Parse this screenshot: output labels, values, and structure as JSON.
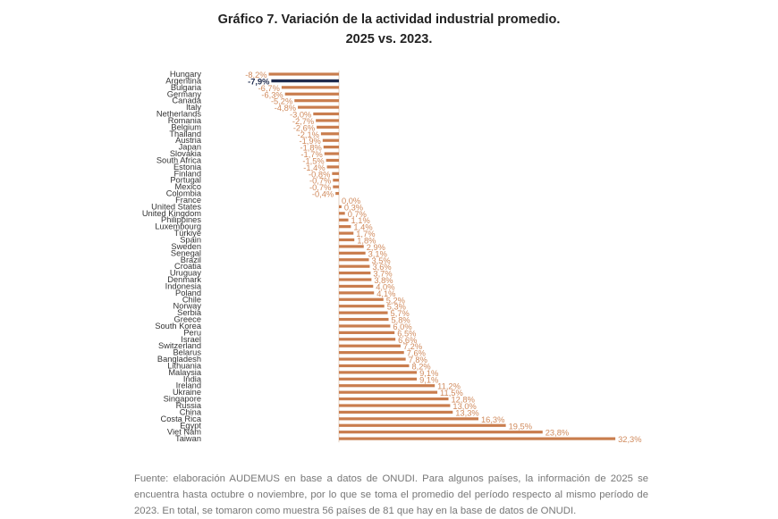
{
  "chart_data": {
    "type": "bar",
    "orientation": "horizontal",
    "title": "Gráfico 7. Variación de la actividad industrial promedio.",
    "subtitle": "2025 vs. 2023.",
    "categories": [
      "Hungary",
      "Argentina",
      "Bulgaria",
      "Germany",
      "Canada",
      "Italy",
      "Netherlands",
      "Romania",
      "Belgium",
      "Thailand",
      "Austria",
      "Japan",
      "Slovakia",
      "South Africa",
      "Estonia",
      "Finland",
      "Portugal",
      "Mexico",
      "Colombia",
      "France",
      "United States",
      "United Kingdom",
      "Philippines",
      "Luxembourg",
      "Türkiye",
      "Spain",
      "Sweden",
      "Senegal",
      "Brazil",
      "Croatia",
      "Uruguay",
      "Denmark",
      "Indonesia",
      "Poland",
      "Chile",
      "Norway",
      "Serbia",
      "Greece",
      "South Korea",
      "Peru",
      "Israel",
      "Switzerland",
      "Belarus",
      "Bangladesh",
      "Lithuania",
      "Malaysia",
      "India",
      "Ireland",
      "Ukraine",
      "Singapore",
      "Russia",
      "China",
      "Costa Rica",
      "Egypt",
      "Viet Nam",
      "Taiwan"
    ],
    "values": [
      -8.2,
      -7.9,
      -6.7,
      -6.3,
      -5.2,
      -4.8,
      -3.0,
      -2.7,
      -2.6,
      -2.1,
      -1.9,
      -1.8,
      -1.7,
      -1.5,
      -1.4,
      -0.8,
      -0.7,
      -0.7,
      -0.4,
      0.0,
      0.3,
      0.7,
      1.1,
      1.4,
      1.7,
      1.8,
      2.9,
      3.1,
      3.5,
      3.6,
      3.7,
      3.8,
      4.0,
      4.1,
      5.2,
      5.3,
      5.7,
      5.8,
      6.0,
      6.5,
      6.6,
      7.2,
      7.6,
      7.8,
      8.2,
      9.1,
      9.1,
      11.2,
      11.5,
      12.8,
      13.0,
      13.3,
      16.3,
      19.5,
      23.8,
      32.3
    ],
    "data_labels": [
      "-8,2%",
      "-7,9%",
      "-6,7%",
      "-6,3%",
      "-5,2%",
      "-4,8%",
      "-3,0%",
      "-2,7%",
      "-2,6%",
      "-2,1%",
      "-1,9%",
      "-1,8%",
      "-1,7%",
      "-1,5%",
      "-1,4%",
      "-0,8%",
      "-0,7%",
      "-0,7%",
      "-0,4%",
      "0,0%",
      "0,3%",
      "0,7%",
      "1,1%",
      "1,4%",
      "1,7%",
      "1,8%",
      "2,9%",
      "3,1%",
      "3,5%",
      "3,6%",
      "3,7%",
      "3,8%",
      "4,0%",
      "4,1%",
      "5,2%",
      "5,3%",
      "5,7%",
      "5,8%",
      "6,0%",
      "6,5%",
      "6,6%",
      "7,2%",
      "7,6%",
      "7,8%",
      "8,2%",
      "9,1%",
      "9,1%",
      "11,2%",
      "11,5%",
      "12,8%",
      "13,0%",
      "13,3%",
      "16,3%",
      "19,5%",
      "23,8%",
      "32,3%"
    ],
    "highlight": "Argentina",
    "colors": {
      "bar": "#c97d4e",
      "highlight": "#1f2b4d",
      "label": "#d08a5c",
      "highlight_label": "#1f2b4d"
    },
    "xlim": [
      -8.2,
      32.3
    ],
    "grid": false,
    "legend": "none"
  },
  "footer": "Fuente: elaboración AUDEMUS en base a datos de ONUDI. Para algunos países, la información de 2025 se encuentra hasta octubre o noviembre, por lo que se toma el promedio del período respecto al mismo período de 2023. En total, se tomaron como muestra 56 países de 81 que hay en la base de datos de ONUDI."
}
